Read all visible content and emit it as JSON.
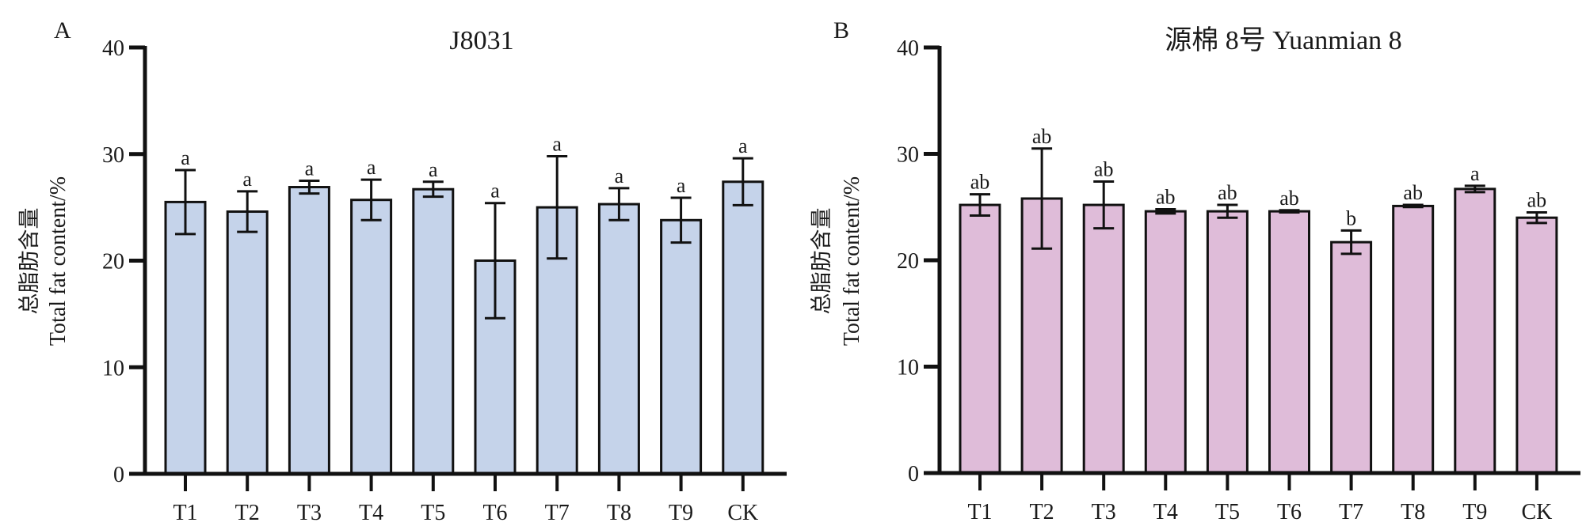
{
  "chart_data": [
    {
      "panel_label": "A",
      "type": "bar",
      "title": "J8031",
      "ylabel_cn": "总脂肪含量",
      "ylabel": "Total fat content/%",
      "xlabel": "",
      "ylim": [
        0,
        40
      ],
      "yticks": [
        0,
        10,
        20,
        30,
        40
      ],
      "categories": [
        "T1",
        "T2",
        "T3",
        "T4",
        "T5",
        "T6",
        "T7",
        "T8",
        "T9",
        "CK"
      ],
      "values": [
        25.5,
        24.6,
        26.9,
        25.7,
        26.7,
        20.0,
        25.0,
        25.3,
        23.8,
        27.4
      ],
      "errors": [
        3.0,
        1.9,
        0.6,
        1.9,
        0.7,
        5.4,
        4.8,
        1.5,
        2.1,
        2.2
      ],
      "significance": [
        "a",
        "a",
        "a",
        "a",
        "a",
        "a",
        "a",
        "a",
        "a",
        "a"
      ],
      "bar_color": "#c5d3ea",
      "grid": false
    },
    {
      "panel_label": "B",
      "type": "bar",
      "title": "源棉 8号 Yuanmian 8",
      "ylabel_cn": "总脂肪含量",
      "ylabel": "Total fat content/%",
      "xlabel": "",
      "ylim": [
        0,
        40
      ],
      "yticks": [
        0,
        10,
        20,
        30,
        40
      ],
      "categories": [
        "T1",
        "T2",
        "T3",
        "T4",
        "T5",
        "T6",
        "T7",
        "T8",
        "T9",
        "CK"
      ],
      "values": [
        25.2,
        25.8,
        25.2,
        24.6,
        24.6,
        24.6,
        21.7,
        25.1,
        26.7,
        24.0
      ],
      "errors": [
        1.0,
        4.7,
        2.2,
        0.2,
        0.6,
        0.1,
        1.1,
        0.1,
        0.3,
        0.5
      ],
      "significance": [
        "ab",
        "ab",
        "ab",
        "ab",
        "ab",
        "ab",
        "b",
        "ab",
        "a",
        "ab"
      ],
      "bar_color": "#dfbcd9",
      "grid": false
    }
  ]
}
